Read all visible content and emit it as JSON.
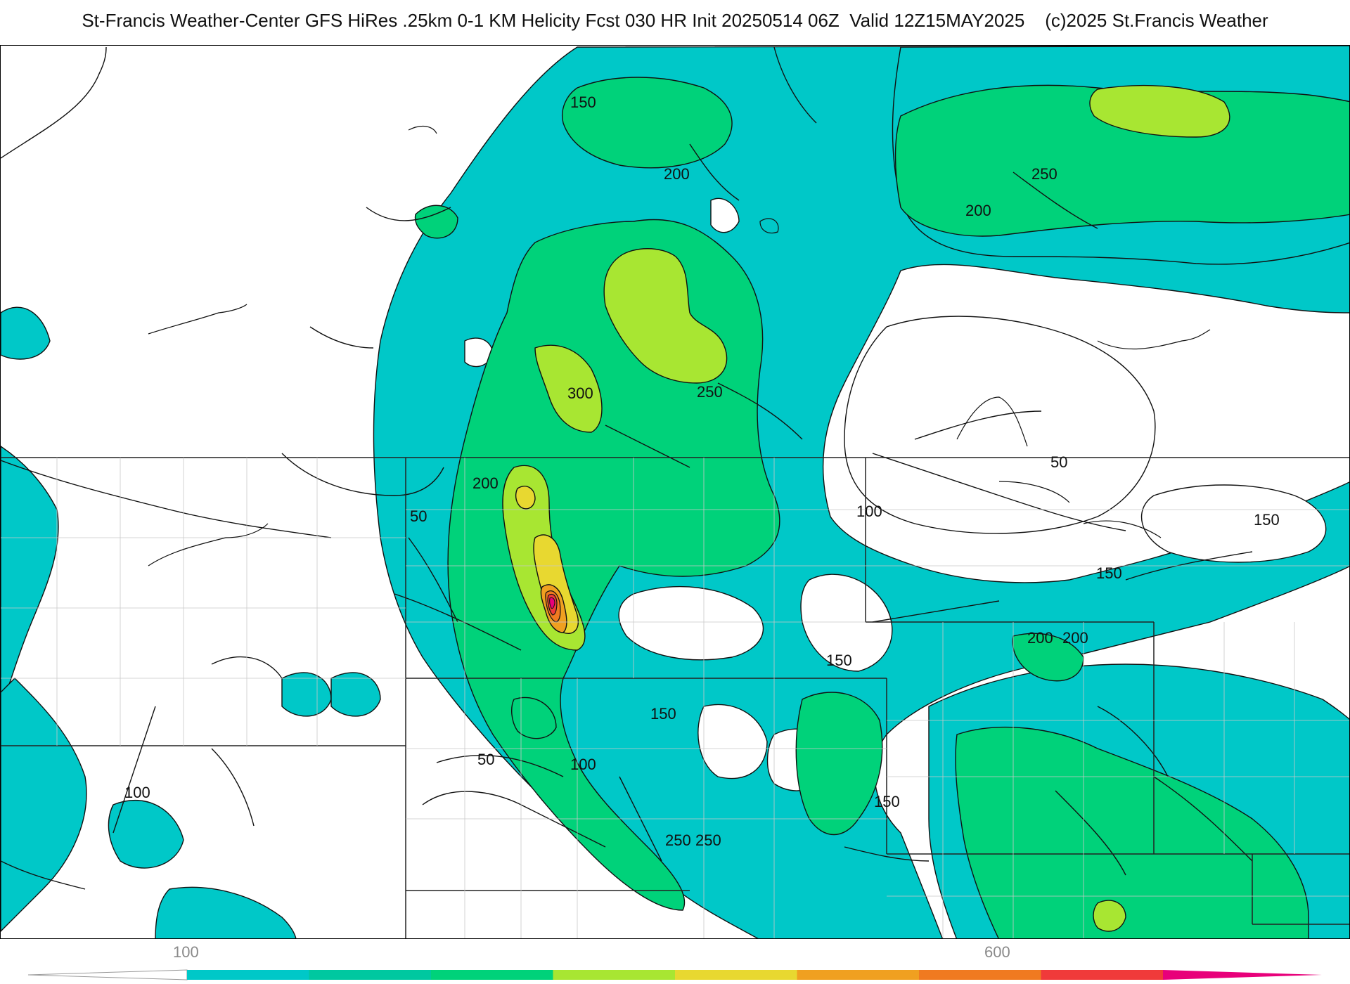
{
  "header": {
    "title": "St-Francis Weather-Center GFS HiRes .25km 0-1 KM Helicity Fcst 030 HR Init 20250514 06Z  Valid 12Z15MAY2025    (c)2025 St.Francis Weather"
  },
  "colors": {
    "band_100": "#00c8c8",
    "band_200": "#00d27a",
    "band_300": "#a8e632",
    "band_400": "#e8d830",
    "band_500": "#f0a020",
    "band_600": "#f07a20",
    "band_700": "#f03a3a",
    "band_800": "#e8007a",
    "contour": "#111111",
    "border": "#222222",
    "county": "#c8c8c8"
  },
  "contour_labels": [
    "150",
    "200",
    "250",
    "300",
    "250",
    "200",
    "200",
    "50",
    "100",
    "150",
    "150",
    "200",
    "150",
    "100",
    "50",
    "100",
    "150",
    "250",
    "150",
    "50",
    "250",
    "200"
  ],
  "legend": {
    "tick_labels": [
      "100",
      "600"
    ],
    "colors": [
      "#00c8c8",
      "#00c8a0",
      "#00d27a",
      "#a8e632",
      "#e8d830",
      "#f0a020",
      "#f07a20",
      "#f03a3a",
      "#e8007a"
    ]
  }
}
